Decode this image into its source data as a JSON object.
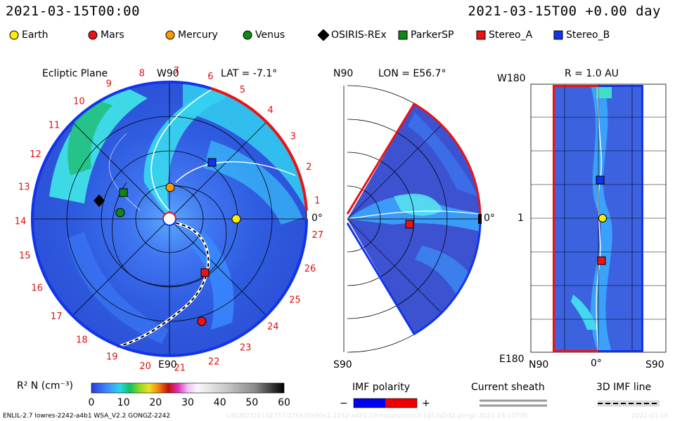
{
  "header": {
    "left_time": "2021-03-15T00:00",
    "right_time": "2021-03-15T00 +0.00 day"
  },
  "legend": [
    {
      "label": "Earth",
      "color": "#ffee00",
      "shape": "circle"
    },
    {
      "label": "Mars",
      "color": "#ee1111",
      "shape": "circle"
    },
    {
      "label": "Mercury",
      "color": "#ff9900",
      "shape": "circle"
    },
    {
      "label": "Venus",
      "color": "#118811",
      "shape": "circle"
    },
    {
      "label": "OSIRIS-REx",
      "color": "#000000",
      "shape": "diamond"
    },
    {
      "label": "ParkerSP",
      "color": "#118811",
      "shape": "square"
    },
    {
      "label": "Stereo_A",
      "color": "#ee1111",
      "shape": "square"
    },
    {
      "label": "Stereo_B",
      "color": "#1133ee",
      "shape": "square"
    }
  ],
  "panels": {
    "ecliptic": {
      "title": "Ecliptic Plane",
      "lat": "LAT = -7.1°",
      "top_label": "W90",
      "bottom_label": "E90",
      "right_label": "0°"
    },
    "meridional": {
      "top_label": "N90",
      "lon": "LON = E56.7°",
      "bottom_label": "S90",
      "right_label": "0°"
    },
    "radial": {
      "r_label": "R = 1.0 AU",
      "top_left": "W180",
      "mid_left": "1",
      "bottom_left": "E180",
      "bottom_n": "N90",
      "bottom_zero": "0°",
      "bottom_s": "S90"
    }
  },
  "chart_data": {
    "type": "heatmap",
    "colorbar": {
      "label": "R² N (cm⁻³)",
      "ticks": [
        "0",
        "10",
        "20",
        "30",
        "40",
        "50",
        "60"
      ],
      "range": [
        0,
        60
      ]
    },
    "carrington_ticks": [
      "1",
      "2",
      "3",
      "4",
      "5",
      "6",
      "7",
      "8",
      "9",
      "10",
      "11",
      "12",
      "13",
      "14",
      "15",
      "16",
      "17",
      "18",
      "19",
      "20",
      "21",
      "22",
      "23",
      "24",
      "25",
      "26",
      "27"
    ],
    "colors": {
      "tick_red": "#e01010",
      "polarity_negative": "#0000ee",
      "polarity_positive": "#ee0000"
    }
  },
  "bottom_legend": {
    "imf_polarity": "IMF polarity",
    "minus": "−",
    "plus": "+",
    "current_sheath": "Current sheath",
    "imf_line": "3D IMF line"
  },
  "footer": {
    "left": "ENLIL-2.7 lowres-2242-a4b1 WSA_V2.2 GONGZ-2242",
    "right": "UNOB0316102757/256x30x90x1.2242-a4b1.16-nocplummcd-1g53q5d2.gongz-2021-03-15T00",
    "right2": "2021-03-16"
  }
}
